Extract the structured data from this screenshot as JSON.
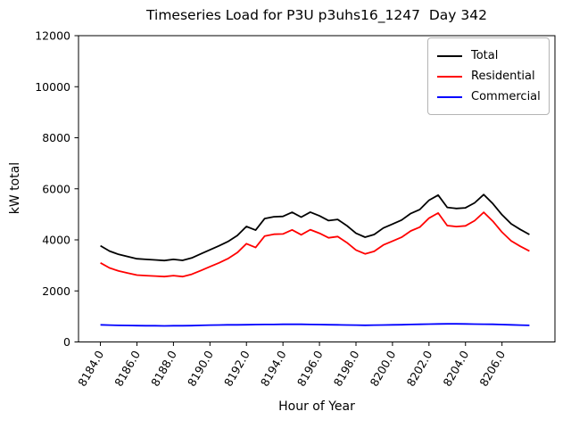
{
  "figure": {
    "title": "Timeseries Load for P3U p3uhs16_1247  Day 342"
  },
  "chart_data": {
    "type": "line",
    "title": "Timeseries Load for P3U p3uhs16_1247  Day 342",
    "xlabel": "Hour of Year",
    "ylabel": "kW total",
    "xlim": [
      8182.8,
      8208.9
    ],
    "ylim": [
      0,
      12000
    ],
    "grid": false,
    "legend_position": "upper right",
    "yticks": [
      0,
      2000,
      4000,
      6000,
      8000,
      10000,
      12000
    ],
    "xticks": [
      8184,
      8186,
      8188,
      8190,
      8192,
      8194,
      8196,
      8198,
      8200,
      8202,
      8204,
      8206
    ],
    "xtick_labels": [
      "8184.0",
      "8186.0",
      "8188.0",
      "8190.0",
      "8192.0",
      "8194.0",
      "8196.0",
      "8198.0",
      "8200.0",
      "8202.0",
      "8204.0",
      "8206.0"
    ],
    "xtick_rotation": 60,
    "x": [
      8184.0,
      8184.5,
      8185.0,
      8185.5,
      8186.0,
      8186.5,
      8187.0,
      8187.5,
      8188.0,
      8188.5,
      8189.0,
      8189.5,
      8190.0,
      8190.5,
      8191.0,
      8191.5,
      8192.0,
      8192.5,
      8193.0,
      8193.5,
      8194.0,
      8194.5,
      8195.0,
      8195.5,
      8196.0,
      8196.5,
      8197.0,
      8197.5,
      8198.0,
      8198.5,
      8199.0,
      8199.5,
      8200.0,
      8200.5,
      8201.0,
      8201.5,
      8202.0,
      8202.5,
      8203.0,
      8203.5,
      8204.0,
      8204.5,
      8205.0,
      8205.5,
      8206.0,
      8206.5,
      8207.0,
      8207.5
    ],
    "series": [
      {
        "name": "Total",
        "color": "#000000",
        "values": [
          3770,
          3560,
          3430,
          3345,
          3260,
          3235,
          3215,
          3190,
          3235,
          3195,
          3290,
          3450,
          3610,
          3765,
          3940,
          4170,
          4525,
          4380,
          4835,
          4905,
          4920,
          5080,
          4890,
          5085,
          4940,
          4755,
          4800,
          4555,
          4260,
          4105,
          4210,
          4465,
          4620,
          4775,
          5035,
          5190,
          5550,
          5755,
          5270,
          5230,
          5255,
          5450,
          5775,
          5420,
          4980,
          4630,
          4410,
          4210
        ]
      },
      {
        "name": "Residential",
        "color": "#ff0000",
        "values": [
          3100,
          2900,
          2780,
          2700,
          2620,
          2600,
          2580,
          2560,
          2600,
          2560,
          2650,
          2800,
          2950,
          3100,
          3270,
          3500,
          3850,
          3700,
          4150,
          4220,
          4230,
          4390,
          4200,
          4400,
          4260,
          4080,
          4130,
          3890,
          3600,
          3450,
          3550,
          3800,
          3950,
          4100,
          4350,
          4500,
          4850,
          5050,
          4560,
          4520,
          4550,
          4750,
          5080,
          4730,
          4300,
          3960,
          3750,
          3560
        ]
      },
      {
        "name": "Commercial",
        "color": "#0000ff",
        "values": [
          670,
          660,
          650,
          645,
          640,
          635,
          635,
          630,
          635,
          635,
          640,
          650,
          660,
          665,
          670,
          670,
          675,
          680,
          685,
          685,
          690,
          690,
          690,
          685,
          680,
          675,
          670,
          665,
          660,
          655,
          660,
          665,
          670,
          675,
          685,
          690,
          700,
          705,
          710,
          710,
          705,
          700,
          695,
          690,
          680,
          670,
          660,
          650
        ]
      }
    ]
  }
}
